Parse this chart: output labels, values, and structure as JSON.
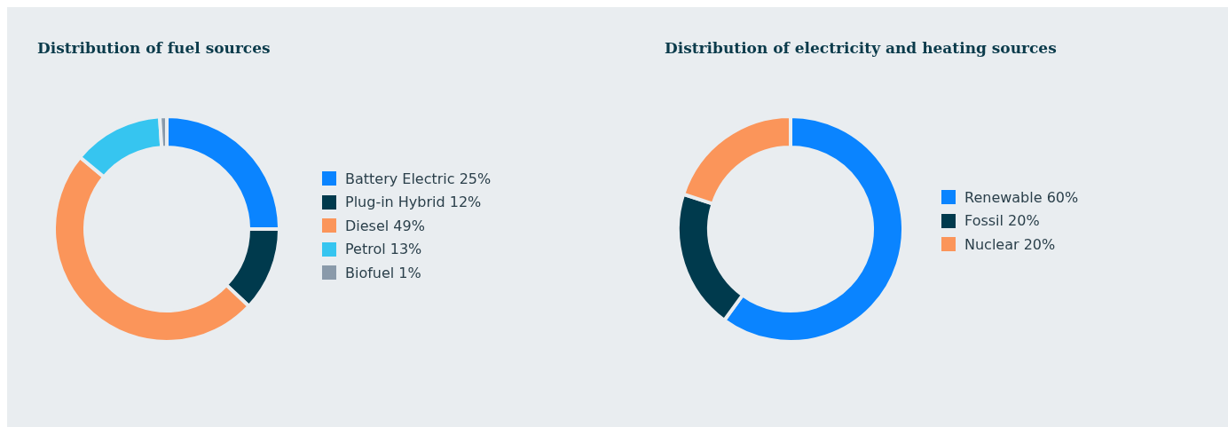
{
  "chart_data": [
    {
      "type": "donut",
      "title": "Distribution of fuel sources",
      "categories": [
        "Battery Electric 25%",
        "Plug-in Hybrid 12%",
        "Diesel 49%",
        "Petrol 13%",
        "Biofuel 1%"
      ],
      "values": [
        25,
        12,
        49,
        13,
        1
      ],
      "colors": [
        "#0a84ff",
        "#003a4d",
        "#fb955a",
        "#36c5f0",
        "#8a9aaa"
      ],
      "legend": "right"
    },
    {
      "type": "donut",
      "title": "Distribution of electricity and heating sources",
      "categories": [
        "Renewable 60%",
        "Fossil 20%",
        "Nuclear 20%"
      ],
      "values": [
        60,
        20,
        20
      ],
      "colors": [
        "#0a84ff",
        "#003a4d",
        "#fb955a"
      ],
      "legend": "right"
    }
  ]
}
